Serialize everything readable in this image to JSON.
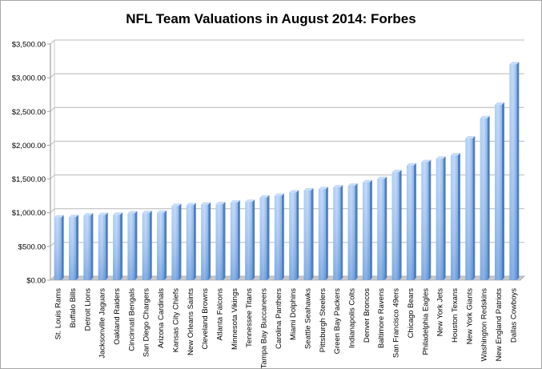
{
  "chart_data": {
    "type": "bar",
    "title": "NFL Team Valuations in August 2014: Forbes",
    "xlabel": "",
    "ylabel": "",
    "ylim": [
      0,
      3500
    ],
    "yticks": [
      0,
      500,
      1000,
      1500,
      2000,
      2500,
      3000,
      3500
    ],
    "ytick_labels": [
      "$0.00",
      "$500.00",
      "$1,000.00",
      "$1,500.00",
      "$2,000.00",
      "$2,500.00",
      "$3,000.00",
      "$3,500.00"
    ],
    "grid": true,
    "legend": "none",
    "bar_color": "#8db4e8",
    "categories": [
      "St. Louis Rams",
      "Buffalo Bills",
      "Detroit Lions",
      "Jacksonville Jaguars",
      "Oakland Raiders",
      "Cincinnati Bengals",
      "San Diego Chargers",
      "Arizona Cardinals",
      "Kansas City Chiefs",
      "New Orleans Saints",
      "Cleveland Browns",
      "Atlanta Falcons",
      "Minnesota Vikings",
      "Tennessee Titans",
      "Tampa Bay Buccaneers",
      "Carolina Panthers",
      "Miami Dolphins",
      "Seattle Seahawks",
      "Pittsburgh Steelers",
      "Green Bay Packers",
      "Indianapolis Colts",
      "Denver Broncos",
      "Baltimore Ravens",
      "San Francisco 49ers",
      "Chicago Bears",
      "Philadelphia Eagles",
      "New York Jets",
      "Houston Texans",
      "New York Giants",
      "Washington Redskins",
      "New England Patriots",
      "Dallas Cowboys"
    ],
    "values": [
      930,
      935,
      960,
      965,
      970,
      990,
      995,
      1000,
      1100,
      1110,
      1120,
      1125,
      1150,
      1160,
      1225,
      1250,
      1300,
      1330,
      1350,
      1375,
      1400,
      1450,
      1500,
      1600,
      1700,
      1750,
      1800,
      1850,
      2100,
      2400,
      2600,
      3200
    ]
  }
}
